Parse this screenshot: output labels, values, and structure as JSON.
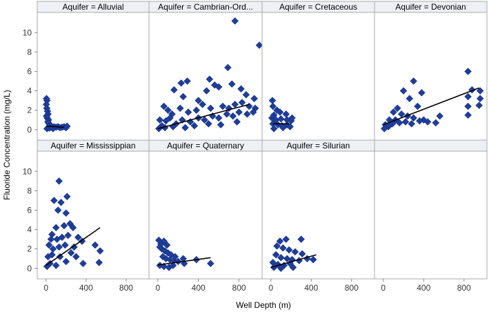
{
  "chart_data": {
    "type": "scatter",
    "layout": "panel grid, 4 columns x 2 rows",
    "xlabel": "Well Depth (m)",
    "ylabel": "Fluoride Concentration (mg/L)",
    "xlim": [
      -60,
      1000
    ],
    "ylim": [
      -0.8,
      11.8
    ],
    "x_ticks": [
      0,
      400,
      800
    ],
    "y_ticks": [
      0,
      2,
      4,
      6,
      8,
      10
    ],
    "marker": "diamond",
    "colors": {
      "marker": "#1f3d99",
      "fit_line": "#000000",
      "strip_bg": "#eef0f6",
      "frame": "#a9a9a9"
    },
    "panels": [
      {
        "strip": "Aquifer = Alluvial",
        "points": [
          [
            5,
            3.2
          ],
          [
            10,
            3.0
          ],
          [
            3,
            2.6
          ],
          [
            8,
            2.2
          ],
          [
            15,
            1.9
          ],
          [
            20,
            1.6
          ],
          [
            5,
            1.4
          ],
          [
            12,
            1.2
          ],
          [
            25,
            1.0
          ],
          [
            18,
            0.8
          ],
          [
            30,
            0.6
          ],
          [
            40,
            0.5
          ],
          [
            50,
            0.4
          ],
          [
            60,
            0.3
          ],
          [
            80,
            0.3
          ],
          [
            100,
            0.25
          ],
          [
            120,
            0.3
          ],
          [
            140,
            0.2
          ],
          [
            160,
            0.25
          ],
          [
            180,
            0.3
          ],
          [
            200,
            0.2
          ],
          [
            10,
            0.1
          ],
          [
            35,
            0.15
          ],
          [
            70,
            0.1
          ],
          [
            210,
            0.35
          ]
        ],
        "fit": [
          [
            0,
            0.35
          ],
          [
            180,
            0.25
          ]
        ]
      },
      {
        "strip": "Aquifer = Cambrian-Ord...",
        "points": [
          [
            760,
            11.2
          ],
          [
            1000,
            8.7
          ],
          [
            690,
            6.4
          ],
          [
            290,
            5.0
          ],
          [
            230,
            4.8
          ],
          [
            510,
            5.2
          ],
          [
            560,
            4.6
          ],
          [
            730,
            4.7
          ],
          [
            160,
            4.1
          ],
          [
            250,
            3.4
          ],
          [
            400,
            3.0
          ],
          [
            480,
            4.0
          ],
          [
            600,
            4.4
          ],
          [
            820,
            4.2
          ],
          [
            870,
            3.6
          ],
          [
            950,
            3.2
          ],
          [
            60,
            2.4
          ],
          [
            100,
            2.0
          ],
          [
            140,
            1.6
          ],
          [
            220,
            2.2
          ],
          [
            300,
            1.8
          ],
          [
            380,
            2.0
          ],
          [
            440,
            2.6
          ],
          [
            520,
            2.2
          ],
          [
            640,
            2.4
          ],
          [
            700,
            2.2
          ],
          [
            760,
            2.6
          ],
          [
            830,
            2.8
          ],
          [
            900,
            2.4
          ],
          [
            960,
            2.2
          ],
          [
            20,
            1.0
          ],
          [
            40,
            0.4
          ],
          [
            80,
            0.9
          ],
          [
            120,
            1.2
          ],
          [
            180,
            0.6
          ],
          [
            240,
            1.0
          ],
          [
            320,
            0.8
          ],
          [
            400,
            1.2
          ],
          [
            460,
            1.0
          ],
          [
            540,
            1.4
          ],
          [
            600,
            1.2
          ],
          [
            680,
            1.6
          ],
          [
            740,
            1.4
          ],
          [
            800,
            1.8
          ],
          [
            880,
            1.6
          ],
          [
            940,
            1.8
          ],
          [
            10,
            0.1
          ],
          [
            70,
            0.2
          ],
          [
            150,
            0.3
          ],
          [
            270,
            0.2
          ],
          [
            360,
            0.4
          ],
          [
            500,
            0.6
          ],
          [
            620,
            0.5
          ],
          [
            780,
            0.8
          ]
        ],
        "fit": [
          [
            0,
            0.1
          ],
          [
            900,
            2.6
          ]
        ]
      },
      {
        "strip": "Aquifer = Cretaceous",
        "points": [
          [
            15,
            3.0
          ],
          [
            20,
            2.4
          ],
          [
            60,
            2.0
          ],
          [
            90,
            1.8
          ],
          [
            150,
            1.6
          ],
          [
            30,
            1.5
          ],
          [
            10,
            1.2
          ],
          [
            50,
            1.0
          ],
          [
            100,
            1.1
          ],
          [
            160,
            1.0
          ],
          [
            200,
            0.9
          ],
          [
            210,
            1.2
          ],
          [
            20,
            0.6
          ],
          [
            70,
            0.5
          ],
          [
            110,
            0.4
          ],
          [
            160,
            0.5
          ],
          [
            190,
            0.3
          ],
          [
            30,
            0.1
          ],
          [
            120,
            0.2
          ]
        ],
        "fit": [
          [
            20,
            0.6
          ],
          [
            180,
            0.6
          ]
        ]
      },
      {
        "strip": "Aquifer = Devonian",
        "points": [
          [
            840,
            6.0
          ],
          [
            300,
            5.0
          ],
          [
            200,
            4.0
          ],
          [
            380,
            3.8
          ],
          [
            880,
            4.1
          ],
          [
            960,
            4.0
          ],
          [
            960,
            3.2
          ],
          [
            840,
            3.4
          ],
          [
            950,
            2.5
          ],
          [
            840,
            2.4
          ],
          [
            840,
            1.5
          ],
          [
            560,
            1.4
          ],
          [
            520,
            0.7
          ],
          [
            260,
            3.2
          ],
          [
            340,
            2.4
          ],
          [
            140,
            2.2
          ],
          [
            100,
            1.8
          ],
          [
            180,
            1.6
          ],
          [
            240,
            1.4
          ],
          [
            300,
            1.2
          ],
          [
            400,
            1.0
          ],
          [
            60,
            1.0
          ],
          [
            120,
            1.0
          ],
          [
            20,
            0.5
          ],
          [
            50,
            0.3
          ],
          [
            90,
            0.6
          ],
          [
            160,
            0.7
          ],
          [
            220,
            0.8
          ],
          [
            280,
            0.6
          ],
          [
            360,
            0.9
          ],
          [
            440,
            0.8
          ],
          [
            10,
            0.1
          ]
        ],
        "fit": [
          [
            0,
            0.5
          ],
          [
            950,
            4.3
          ]
        ]
      },
      {
        "strip": "Aquifer = Mississippian",
        "points": [
          [
            130,
            9.0
          ],
          [
            80,
            7.0
          ],
          [
            150,
            6.8
          ],
          [
            120,
            6.0
          ],
          [
            210,
            7.4
          ],
          [
            200,
            5.7
          ],
          [
            100,
            4.2
          ],
          [
            180,
            4.4
          ],
          [
            240,
            4.6
          ],
          [
            270,
            4.2
          ],
          [
            60,
            3.5
          ],
          [
            50,
            3.0
          ],
          [
            110,
            3.0
          ],
          [
            160,
            3.2
          ],
          [
            220,
            3.4
          ],
          [
            320,
            3.2
          ],
          [
            360,
            2.8
          ],
          [
            30,
            2.4
          ],
          [
            70,
            2.0
          ],
          [
            130,
            2.2
          ],
          [
            190,
            2.4
          ],
          [
            280,
            2.2
          ],
          [
            490,
            2.4
          ],
          [
            540,
            1.8
          ],
          [
            20,
            1.2
          ],
          [
            60,
            1.4
          ],
          [
            140,
            1.2
          ],
          [
            250,
            1.6
          ],
          [
            300,
            1.2
          ],
          [
            370,
            0.5
          ],
          [
            530,
            0.6
          ],
          [
            10,
            0.2
          ],
          [
            40,
            0.5
          ],
          [
            100,
            0.3
          ],
          [
            200,
            0.7
          ]
        ],
        "fit": [
          [
            0,
            0.3
          ],
          [
            540,
            4.2
          ]
        ]
      },
      {
        "strip": "Aquifer = Quaternary",
        "points": [
          [
            10,
            2.9
          ],
          [
            30,
            2.5
          ],
          [
            60,
            2.8
          ],
          [
            90,
            2.4
          ],
          [
            20,
            2.2
          ],
          [
            40,
            2.0
          ],
          [
            70,
            1.8
          ],
          [
            100,
            1.6
          ],
          [
            130,
            1.4
          ],
          [
            170,
            1.2
          ],
          [
            50,
            1.2
          ],
          [
            80,
            1.0
          ],
          [
            120,
            0.9
          ],
          [
            160,
            0.8
          ],
          [
            200,
            0.7
          ],
          [
            260,
            0.5
          ],
          [
            20,
            0.3
          ],
          [
            60,
            0.2
          ],
          [
            110,
            0.1
          ],
          [
            150,
            0.3
          ],
          [
            250,
            1.0
          ],
          [
            380,
            0.9
          ],
          [
            520,
            0.5
          ]
        ],
        "fit": [
          [
            0,
            0.35
          ],
          [
            520,
            1.1
          ]
        ]
      },
      {
        "strip": "Aquifer = Silurian",
        "points": [
          [
            90,
            2.8
          ],
          [
            150,
            3.0
          ],
          [
            300,
            3.0
          ],
          [
            60,
            2.3
          ],
          [
            120,
            2.1
          ],
          [
            180,
            1.9
          ],
          [
            240,
            1.7
          ],
          [
            310,
            1.5
          ],
          [
            50,
            1.4
          ],
          [
            100,
            1.1
          ],
          [
            160,
            1.0
          ],
          [
            210,
            0.9
          ],
          [
            280,
            0.8
          ],
          [
            360,
            1.0
          ],
          [
            420,
            0.9
          ],
          [
            20,
            0.6
          ],
          [
            70,
            0.4
          ],
          [
            130,
            0.3
          ],
          [
            190,
            0.5
          ],
          [
            30,
            0.1
          ],
          [
            100,
            0.0
          ],
          [
            220,
            0.1
          ]
        ],
        "fit": [
          [
            0,
            0.1
          ],
          [
            450,
            1.4
          ]
        ]
      },
      {
        "strip": "",
        "points": [],
        "fit": []
      }
    ]
  }
}
